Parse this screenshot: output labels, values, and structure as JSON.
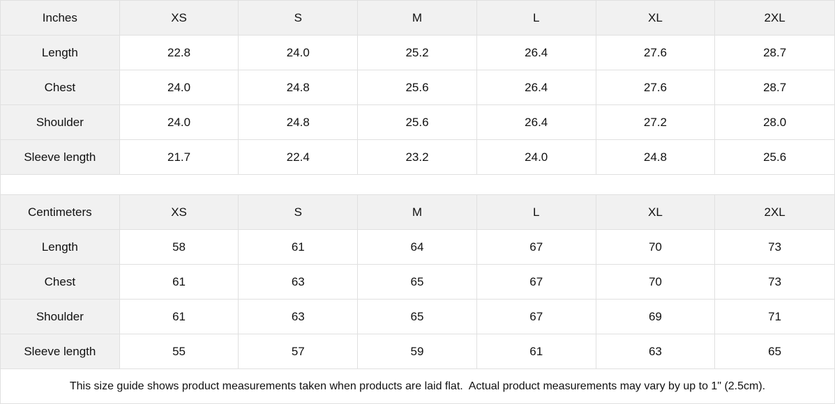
{
  "colors": {
    "header_bg": "#f1f1f1",
    "border": "#e0e0e0",
    "text": "#111111",
    "background": "#ffffff"
  },
  "chart_data": [
    {
      "type": "table",
      "id": "inches",
      "unit_label": "Inches",
      "columns": [
        "XS",
        "S",
        "M",
        "L",
        "XL",
        "2XL"
      ],
      "rows": [
        {
          "label": "Length",
          "values": [
            "22.8",
            "24.0",
            "25.2",
            "26.4",
            "27.6",
            "28.7"
          ]
        },
        {
          "label": "Chest",
          "values": [
            "24.0",
            "24.8",
            "25.6",
            "26.4",
            "27.6",
            "28.7"
          ]
        },
        {
          "label": "Shoulder",
          "values": [
            "24.0",
            "24.8",
            "25.6",
            "26.4",
            "27.2",
            "28.0"
          ]
        },
        {
          "label": "Sleeve length",
          "values": [
            "21.7",
            "22.4",
            "23.2",
            "24.0",
            "24.8",
            "25.6"
          ]
        }
      ]
    },
    {
      "type": "table",
      "id": "centimeters",
      "unit_label": "Centimeters",
      "columns": [
        "XS",
        "S",
        "M",
        "L",
        "XL",
        "2XL"
      ],
      "rows": [
        {
          "label": "Length",
          "values": [
            "58",
            "61",
            "64",
            "67",
            "70",
            "73"
          ]
        },
        {
          "label": "Chest",
          "values": [
            "61",
            "63",
            "65",
            "67",
            "70",
            "73"
          ]
        },
        {
          "label": "Shoulder",
          "values": [
            "61",
            "63",
            "65",
            "67",
            "69",
            "71"
          ]
        },
        {
          "label": "Sleeve length",
          "values": [
            "55",
            "57",
            "59",
            "61",
            "63",
            "65"
          ]
        }
      ]
    }
  ],
  "footer": {
    "note": "This size guide shows product measurements taken when products are laid flat.  Actual product measurements may vary by up to 1\" (2.5cm)."
  }
}
